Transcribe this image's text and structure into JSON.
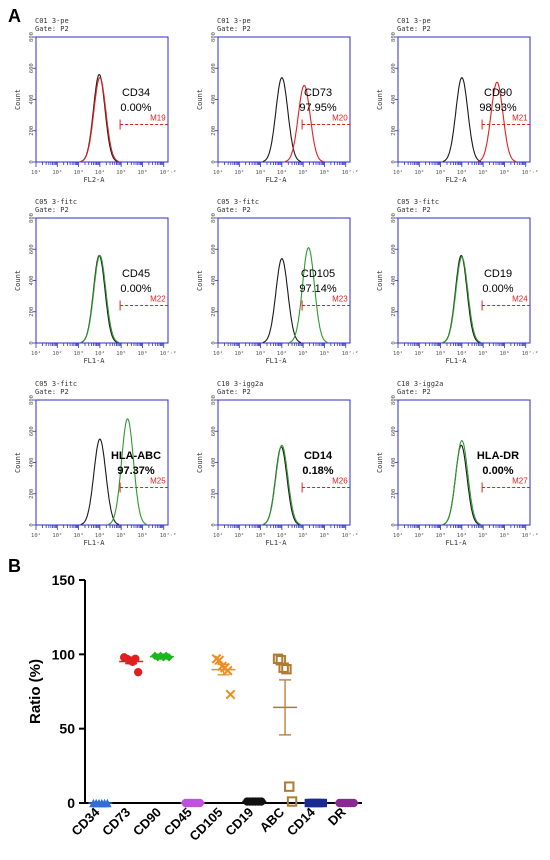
{
  "panel_labels": {
    "a": "A",
    "b": "B"
  },
  "colors": {
    "black": "#1a1a1a",
    "red": "#e02020",
    "green": "#2e9a2e",
    "frame": "#2d2dc8",
    "gate": "#e02020"
  },
  "histogram_axis": {
    "y_label": "Count",
    "y_ticks": [
      "0",
      "200",
      "400",
      "600",
      "800"
    ],
    "x_ticks": [
      "10¹",
      "10²",
      "10³",
      "10⁴",
      "10⁵",
      "10⁶",
      "10⁷·²"
    ]
  },
  "chart_data": [
    {
      "type": "area",
      "panel": "A",
      "x_scale": "log",
      "ylim": [
        0,
        800
      ],
      "histograms": [
        {
          "header1": "C01 3-pe",
          "header2": "Gate: P2",
          "xlabel": "FL2-A",
          "marker": "CD34",
          "percent": "0.00%",
          "gate_label": "M19",
          "overlay_color": "red",
          "isotype_peak_log10": 4.0,
          "isotype_peak_count": 560,
          "stain_peak_log10": 4.0,
          "stain_peak_count": 540,
          "show_isotype": false
        },
        {
          "header1": "C01 3-pe",
          "header2": "Gate: P2",
          "xlabel": "FL2-A",
          "marker": "CD73",
          "percent": "97.95%",
          "gate_label": "M20",
          "overlay_color": "red",
          "isotype_peak_log10": 4.0,
          "isotype_peak_count": 540,
          "stain_peak_log10": 5.05,
          "stain_peak_count": 490,
          "show_isotype": true
        },
        {
          "header1": "C01 3-pe",
          "header2": "Gate: P2",
          "xlabel": "FL2-A",
          "marker": "CD90",
          "percent": "98.93%",
          "gate_label": "M21",
          "overlay_color": "red",
          "isotype_peak_log10": 4.0,
          "isotype_peak_count": 540,
          "stain_peak_log10": 5.65,
          "stain_peak_count": 510,
          "show_isotype": true
        },
        {
          "header1": "C05 3-fitc",
          "header2": "Gate: P2",
          "xlabel": "FL1-A",
          "marker": "CD45",
          "percent": "0.00%",
          "gate_label": "M22",
          "overlay_color": "green",
          "isotype_peak_log10": 4.0,
          "isotype_peak_count": 560,
          "stain_peak_log10": 4.0,
          "stain_peak_count": 560,
          "show_isotype": false
        },
        {
          "header1": "C05 3-fitc",
          "header2": "Gate: P2",
          "xlabel": "FL1-A",
          "marker": "CD105",
          "percent": "97.14%",
          "gate_label": "M23",
          "overlay_color": "green",
          "isotype_peak_log10": 4.0,
          "isotype_peak_count": 540,
          "stain_peak_log10": 5.25,
          "stain_peak_count": 610,
          "show_isotype": true
        },
        {
          "header1": "C05 3-fitc",
          "header2": "Gate: P2",
          "xlabel": "FL1-A",
          "marker": "CD19",
          "percent": "0.00%",
          "gate_label": "M24",
          "overlay_color": "green",
          "isotype_peak_log10": 4.0,
          "isotype_peak_count": 560,
          "stain_peak_log10": 4.0,
          "stain_peak_count": 550,
          "show_isotype": false
        },
        {
          "header1": "C05 3-fitc",
          "header2": "Gate: P2",
          "xlabel": "FL1-A",
          "marker": "HLA-ABC",
          "percent": "97.37%",
          "gate_label": "M25",
          "overlay_color": "green",
          "isotype_peak_log10": 4.0,
          "isotype_peak_count": 550,
          "stain_peak_log10": 5.3,
          "stain_peak_count": 680,
          "show_isotype": true
        },
        {
          "header1": "C10 3-igg2a",
          "header2": "Gate: P2",
          "xlabel": "FL1-A",
          "marker": "CD14",
          "percent": "0.18%",
          "gate_label": "M26",
          "overlay_color": "green",
          "isotype_peak_log10": 4.0,
          "isotype_peak_count": 500,
          "stain_peak_log10": 4.0,
          "stain_peak_count": 510,
          "show_isotype": false
        },
        {
          "header1": "C10 3-igg2a",
          "header2": "Gate: P2",
          "xlabel": "FL1-A",
          "marker": "HLA-DR",
          "percent": "0.00%",
          "gate_label": "M27",
          "overlay_color": "green",
          "isotype_peak_log10": 4.0,
          "isotype_peak_count": 510,
          "stain_peak_log10": 4.0,
          "stain_peak_count": 540,
          "show_isotype": false
        }
      ]
    },
    {
      "type": "scatter",
      "panel": "B",
      "ylabel": "Ratio (%)",
      "ylim": [
        0,
        150
      ],
      "yticks": [
        0,
        50,
        100,
        150
      ],
      "categories": [
        "CD34",
        "CD73",
        "CD90",
        "CD45",
        "CD105",
        "CD19",
        "ABC",
        "CD14",
        "DR"
      ],
      "series": [
        {
          "category": "CD34",
          "color": "#2f6fd6",
          "marker": "triangle",
          "values": [
            0,
            0,
            0,
            0,
            0,
            0
          ],
          "mean": 0,
          "sem": 0
        },
        {
          "category": "CD73",
          "color": "#e02020",
          "marker": "circle",
          "values": [
            98,
            97,
            96,
            95,
            97,
            88
          ],
          "mean": 95.2,
          "sem": 1.5
        },
        {
          "category": "CD90",
          "color": "#18b818",
          "marker": "diamond",
          "values": [
            99,
            98,
            99,
            98,
            99,
            98
          ],
          "mean": 98.5,
          "sem": 0.3
        },
        {
          "category": "CD45",
          "color": "#c050e0",
          "marker": "circle",
          "values": [
            0,
            0,
            0,
            0,
            0,
            0
          ],
          "mean": 0,
          "sem": 0
        },
        {
          "category": "CD105",
          "color": "#f08c20",
          "marker": "x",
          "values": [
            97,
            96,
            92,
            91,
            89,
            73
          ],
          "mean": 89.7,
          "sem": 3.5
        },
        {
          "category": "CD19",
          "color": "#111111",
          "marker": "circle",
          "values": [
            1,
            1,
            1,
            1,
            1,
            1
          ],
          "mean": 1,
          "sem": 0
        },
        {
          "category": "ABC",
          "color": "#b07a30",
          "marker": "open-square",
          "values": [
            97,
            96,
            91,
            90,
            11,
            1
          ],
          "mean": 64.3,
          "sem": 18.5
        },
        {
          "category": "CD14",
          "color": "#1a2a90",
          "marker": "square",
          "values": [
            0,
            0,
            0,
            0,
            0,
            0
          ],
          "mean": 0,
          "sem": 0
        },
        {
          "category": "DR",
          "color": "#8a2a90",
          "marker": "circle",
          "values": [
            0,
            0,
            0,
            0,
            0,
            0
          ],
          "mean": 0,
          "sem": 0
        }
      ]
    }
  ]
}
